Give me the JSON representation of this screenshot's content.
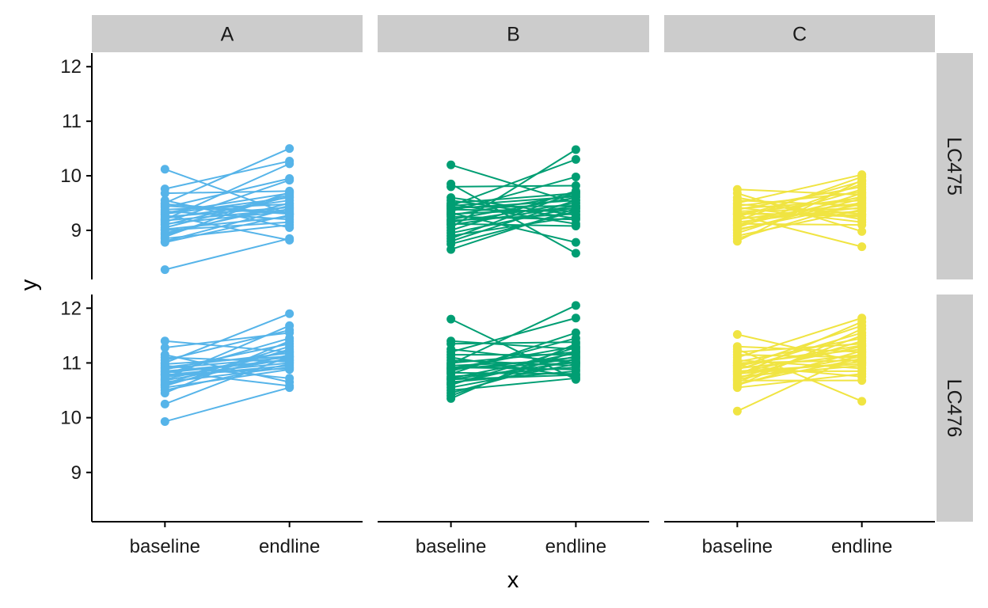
{
  "chart_data": {
    "type": "line",
    "xlabel": "x",
    "ylabel": "y",
    "categories": [
      "baseline",
      "endline"
    ],
    "ylim": [
      8.1,
      12.25
    ],
    "yticks": [
      9,
      10,
      11,
      12
    ],
    "columns": [
      "A",
      "B",
      "C"
    ],
    "rows": [
      "LC475",
      "LC476"
    ],
    "colors": {
      "A": "#56B4E9",
      "B": "#009E73",
      "C": "#F0E442"
    },
    "panels": [
      {
        "col": "A",
        "row": "LC475",
        "baseline": [
          10.12,
          9.76,
          9.68,
          9.55,
          9.5,
          9.45,
          9.42,
          9.38,
          9.35,
          9.32,
          9.3,
          9.28,
          9.25,
          9.22,
          9.2,
          9.18,
          9.15,
          9.12,
          9.1,
          9.05,
          9.02,
          9.0,
          8.95,
          8.92,
          8.88,
          8.85,
          8.8,
          8.78,
          8.28,
          9.48
        ],
        "endline": [
          9.3,
          10.27,
          9.72,
          9.05,
          10.5,
          9.3,
          9.95,
          9.48,
          9.2,
          9.68,
          9.6,
          8.82,
          9.42,
          9.55,
          10.22,
          9.38,
          9.92,
          9.35,
          9.65,
          9.62,
          9.25,
          9.15,
          9.45,
          9.5,
          9.7,
          9.1,
          9.4,
          9.28,
          8.85,
          9.32
        ]
      },
      {
        "col": "B",
        "row": "LC475",
        "baseline": [
          10.2,
          9.85,
          9.8,
          9.6,
          9.55,
          9.5,
          9.48,
          9.45,
          9.42,
          9.4,
          9.38,
          9.35,
          9.32,
          9.3,
          9.28,
          9.25,
          9.2,
          9.18,
          9.15,
          9.12,
          9.1,
          9.05,
          9.0,
          8.95,
          8.9,
          8.85,
          8.8,
          8.75,
          8.65,
          9.45
        ],
        "endline": [
          9.5,
          8.58,
          9.82,
          9.28,
          9.22,
          9.68,
          9.12,
          10.3,
          9.45,
          9.55,
          9.35,
          9.98,
          8.78,
          9.4,
          9.65,
          9.2,
          9.6,
          9.3,
          9.5,
          9.08,
          9.45,
          10.48,
          9.72,
          9.42,
          9.25,
          9.7,
          9.55,
          9.35,
          9.4,
          9.62
        ]
      },
      {
        "col": "C",
        "row": "LC475",
        "baseline": [
          9.75,
          9.68,
          9.6,
          9.55,
          9.5,
          9.48,
          9.45,
          9.42,
          9.4,
          9.38,
          9.35,
          9.32,
          9.3,
          9.28,
          9.25,
          9.22,
          9.2,
          9.18,
          9.15,
          9.12,
          9.1,
          9.08,
          9.05,
          9.02,
          9.0,
          8.95,
          8.9,
          8.85,
          8.8,
          9.3
        ],
        "endline": [
          9.65,
          8.98,
          9.2,
          9.45,
          10.02,
          9.3,
          9.7,
          9.15,
          9.55,
          9.8,
          9.4,
          9.25,
          9.6,
          8.7,
          9.9,
          9.35,
          9.5,
          9.98,
          9.42,
          9.1,
          9.75,
          9.62,
          9.85,
          9.48,
          9.58,
          9.68,
          9.38,
          9.52,
          9.92,
          9.28
        ]
      },
      {
        "col": "A",
        "row": "LC476",
        "baseline": [
          11.4,
          11.28,
          11.15,
          11.1,
          11.05,
          11.0,
          10.98,
          10.95,
          10.92,
          10.9,
          10.88,
          10.85,
          10.82,
          10.8,
          10.78,
          10.75,
          10.72,
          10.7,
          10.68,
          10.65,
          10.62,
          10.6,
          10.58,
          10.55,
          10.5,
          10.45,
          10.25,
          9.93,
          10.85,
          10.78
        ],
        "endline": [
          11.2,
          11.55,
          10.65,
          11.02,
          11.6,
          11.9,
          11.12,
          10.72,
          11.18,
          11.1,
          11.35,
          10.58,
          11.05,
          11.45,
          11.0,
          10.95,
          11.68,
          11.22,
          11.08,
          10.92,
          11.3,
          11.15,
          11.25,
          10.88,
          10.98,
          11.4,
          11.12,
          10.55,
          11.05,
          10.9
        ]
      },
      {
        "col": "B",
        "row": "LC476",
        "baseline": [
          11.8,
          11.4,
          11.35,
          11.25,
          11.2,
          11.15,
          11.1,
          11.05,
          11.0,
          10.98,
          10.95,
          10.92,
          10.9,
          10.88,
          10.85,
          10.82,
          10.8,
          10.75,
          10.72,
          10.7,
          10.65,
          10.62,
          10.6,
          10.55,
          10.5,
          10.45,
          10.4,
          10.35,
          10.9,
          10.7
        ],
        "endline": [
          10.7,
          11.25,
          11.38,
          11.0,
          11.82,
          11.15,
          10.75,
          10.95,
          11.2,
          12.05,
          11.05,
          10.88,
          11.3,
          11.1,
          11.45,
          10.8,
          11.55,
          10.92,
          11.18,
          11.02,
          10.85,
          11.12,
          11.28,
          10.98,
          10.72,
          11.08,
          11.22,
          11.35,
          11.0,
          10.78
        ]
      },
      {
        "col": "C",
        "row": "LC476",
        "baseline": [
          11.52,
          11.3,
          11.25,
          11.2,
          11.15,
          11.1,
          11.05,
          11.02,
          11.0,
          10.98,
          10.95,
          10.92,
          10.9,
          10.88,
          10.85,
          10.82,
          10.8,
          10.78,
          10.75,
          10.72,
          10.7,
          10.68,
          10.65,
          10.62,
          10.6,
          10.58,
          10.55,
          10.12,
          10.95,
          10.85
        ],
        "endline": [
          11.0,
          11.2,
          10.3,
          11.35,
          11.1,
          11.82,
          10.9,
          11.45,
          11.05,
          11.25,
          10.75,
          11.68,
          11.15,
          11.55,
          10.85,
          11.3,
          11.02,
          11.75,
          10.95,
          11.4,
          11.12,
          10.68,
          11.5,
          11.08,
          11.22,
          11.62,
          10.8,
          11.18,
          11.32,
          10.98
        ]
      }
    ]
  }
}
